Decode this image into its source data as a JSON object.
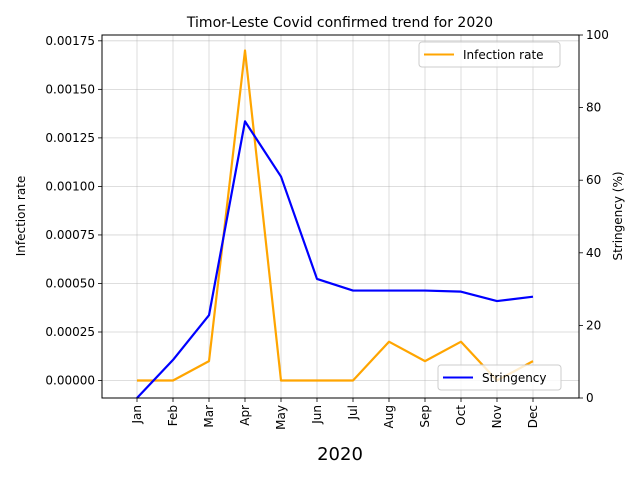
{
  "chart_data": {
    "type": "line",
    "title": "Timor-Leste Covid confirmed trend for 2020",
    "xlabel": "2020",
    "categories": [
      "Jan",
      "Feb",
      "Mar",
      "Apr",
      "May",
      "Jun",
      "Jul",
      "Aug",
      "Sep",
      "Oct",
      "Nov",
      "Dec"
    ],
    "y_left": {
      "label": "Infection rate",
      "lim": [
        -9e-05,
        0.00178
      ],
      "ticks": [
        "0.00000",
        "0.00025",
        "0.00050",
        "0.00075",
        "0.00100",
        "0.00125",
        "0.00150",
        "0.00175"
      ]
    },
    "y_right": {
      "label": "Stringency (%)",
      "lim": [
        0,
        100
      ],
      "ticks": [
        "0",
        "20",
        "40",
        "60",
        "80",
        "100"
      ]
    },
    "grid": true,
    "series": [
      {
        "name": "Infection rate",
        "axis": "left",
        "color": "#FFA500",
        "legend_position": "upper right",
        "values": [
          0.0,
          0.0,
          0.0001,
          0.0017,
          0.0,
          0.0,
          0.0,
          0.0002,
          0.0001,
          0.0002,
          0.0,
          0.0001
        ]
      },
      {
        "name": "Stringency",
        "axis": "right",
        "color": "#0000FF",
        "legend_position": "lower right",
        "values": [
          0.0,
          10.5,
          22.8,
          76.2,
          61.0,
          32.8,
          29.6,
          29.6,
          29.6,
          29.3,
          26.7,
          27.9
        ]
      }
    ]
  }
}
